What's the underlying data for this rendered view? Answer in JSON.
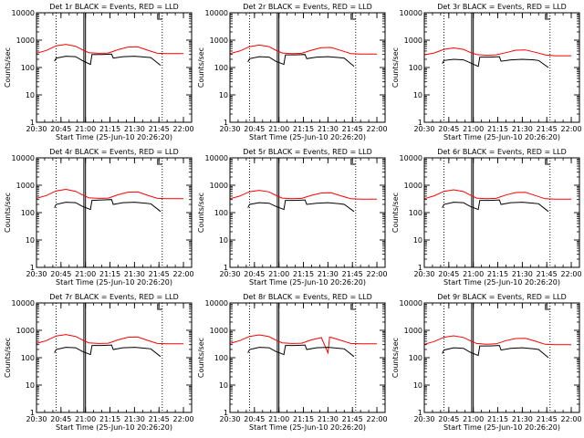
{
  "figure": {
    "background": "#ffffff",
    "axis_color": "#000000",
    "events_color": "#000000",
    "lld_color": "#ff0000"
  },
  "chart_data": [
    {
      "type": "line",
      "title": "Det 1r BLACK = Events, RED = LLD",
      "xlabel": "Start Time (25-Jun-10 20:26:20)",
      "ylabel": "Counts/sec",
      "yscale": "log",
      "ylim": [
        1,
        10000
      ],
      "xlim": [
        "20:30",
        "22:05"
      ],
      "x_ticks": [
        "20:30",
        "20:45",
        "21:00",
        "21:15",
        "21:30",
        "21:45",
        "22:00"
      ],
      "y_ticks": [
        "1",
        "10",
        "100",
        "1000",
        "10000"
      ],
      "dotted_vlines": [
        "20:42",
        "21:47"
      ],
      "solid_vlines": [
        "20:59",
        "21:00"
      ],
      "series": [
        {
          "role": "lld",
          "x": [
            "20:30",
            "20:36",
            "20:42",
            "20:48",
            "20:54",
            "20:58",
            "21:02",
            "21:08",
            "21:14",
            "21:20",
            "21:26",
            "21:32",
            "21:38",
            "21:44",
            "21:50",
            "21:56",
            "22:00"
          ],
          "values": [
            330,
            420,
            620,
            700,
            600,
            450,
            350,
            330,
            340,
            450,
            560,
            570,
            430,
            330,
            320,
            320,
            320
          ]
        },
        {
          "role": "events",
          "x": [
            "20:41",
            "20:42",
            "20:48",
            "20:54",
            "20:58",
            "21:03",
            "21:04",
            "21:10",
            "21:16",
            "21:17",
            "21:23",
            "21:30",
            "21:37",
            "21:40",
            "21:46"
          ],
          "values": [
            170,
            220,
            260,
            250,
            180,
            130,
            300,
            300,
            310,
            220,
            250,
            260,
            240,
            230,
            120
          ]
        }
      ]
    },
    {
      "type": "line",
      "title": "Det 2r BLACK = Events, RED = LLD",
      "xlabel": "Start Time (25-Jun-10 20:26:20)",
      "ylabel": "Counts/sec",
      "yscale": "log",
      "ylim": [
        1,
        10000
      ],
      "xlim": [
        "20:30",
        "22:05"
      ],
      "x_ticks": [
        "20:30",
        "20:45",
        "21:00",
        "21:15",
        "21:30",
        "21:45",
        "22:00"
      ],
      "y_ticks": [
        "1",
        "10",
        "100",
        "1000",
        "10000"
      ],
      "dotted_vlines": [
        "20:42",
        "21:47"
      ],
      "solid_vlines": [
        "20:59",
        "21:00"
      ],
      "series": [
        {
          "role": "lld",
          "x": [
            "20:30",
            "20:36",
            "20:42",
            "20:48",
            "20:54",
            "20:58",
            "21:02",
            "21:08",
            "21:14",
            "21:20",
            "21:26",
            "21:32",
            "21:38",
            "21:44",
            "21:50",
            "21:56",
            "22:00"
          ],
          "values": [
            320,
            400,
            580,
            660,
            580,
            430,
            340,
            320,
            330,
            430,
            530,
            540,
            420,
            320,
            310,
            310,
            310
          ]
        },
        {
          "role": "events",
          "x": [
            "20:41",
            "20:42",
            "20:48",
            "20:54",
            "20:58",
            "21:03",
            "21:04",
            "21:10",
            "21:16",
            "21:17",
            "21:23",
            "21:30",
            "21:37",
            "21:40",
            "21:46"
          ],
          "values": [
            160,
            210,
            250,
            240,
            170,
            130,
            290,
            290,
            300,
            210,
            240,
            250,
            230,
            220,
            110
          ]
        }
      ]
    },
    {
      "type": "line",
      "title": "Det 3r BLACK = Events, RED = LLD",
      "xlabel": "Start Time (25-Jun-10 20:26:20)",
      "ylabel": "Counts/sec",
      "yscale": "log",
      "ylim": [
        1,
        10000
      ],
      "xlim": [
        "20:30",
        "22:05"
      ],
      "x_ticks": [
        "20:30",
        "20:45",
        "21:00",
        "21:15",
        "21:30",
        "21:45",
        "22:00"
      ],
      "y_ticks": [
        "1",
        "10",
        "100",
        "1000",
        "10000"
      ],
      "dotted_vlines": [
        "20:42",
        "21:47"
      ],
      "solid_vlines": [
        "20:59",
        "21:00"
      ],
      "series": [
        {
          "role": "lld",
          "x": [
            "20:30",
            "20:36",
            "20:42",
            "20:48",
            "20:54",
            "20:58",
            "21:02",
            "21:08",
            "21:14",
            "21:20",
            "21:26",
            "21:32",
            "21:38",
            "21:44",
            "21:50",
            "21:56",
            "22:00"
          ],
          "values": [
            290,
            340,
            460,
            520,
            460,
            360,
            300,
            280,
            290,
            350,
            430,
            440,
            360,
            290,
            270,
            270,
            270
          ]
        },
        {
          "role": "events",
          "x": [
            "20:41",
            "20:42",
            "20:48",
            "20:54",
            "20:58",
            "21:03",
            "21:04",
            "21:10",
            "21:16",
            "21:17",
            "21:23",
            "21:30",
            "21:37",
            "21:40",
            "21:46"
          ],
          "values": [
            140,
            180,
            200,
            190,
            150,
            110,
            240,
            240,
            250,
            170,
            190,
            200,
            190,
            180,
            100
          ]
        }
      ]
    },
    {
      "type": "line",
      "title": "Det 4r BLACK = Events, RED = LLD",
      "xlabel": "Start Time (25-Jun-10 20:26:20)",
      "ylabel": "Counts/sec",
      "yscale": "log",
      "ylim": [
        1,
        10000
      ],
      "xlim": [
        "20:30",
        "22:05"
      ],
      "x_ticks": [
        "20:30",
        "20:45",
        "21:00",
        "21:15",
        "21:30",
        "21:45",
        "22:00"
      ],
      "y_ticks": [
        "1",
        "10",
        "100",
        "1000",
        "10000"
      ],
      "dotted_vlines": [
        "20:42",
        "21:47"
      ],
      "solid_vlines": [
        "20:59",
        "21:00"
      ],
      "series": [
        {
          "role": "lld",
          "x": [
            "20:30",
            "20:36",
            "20:42",
            "20:48",
            "20:54",
            "20:58",
            "21:02",
            "21:08",
            "21:14",
            "21:20",
            "21:26",
            "21:32",
            "21:38",
            "21:44",
            "21:50",
            "21:56",
            "22:00"
          ],
          "values": [
            330,
            420,
            620,
            710,
            600,
            450,
            350,
            330,
            340,
            450,
            560,
            570,
            430,
            330,
            320,
            320,
            320
          ]
        },
        {
          "role": "events",
          "x": [
            "20:41",
            "20:42",
            "20:48",
            "20:54",
            "20:58",
            "21:03",
            "21:04",
            "21:10",
            "21:16",
            "21:17",
            "21:23",
            "21:30",
            "21:37",
            "21:40",
            "21:46"
          ],
          "values": [
            150,
            200,
            240,
            230,
            170,
            130,
            280,
            290,
            300,
            200,
            230,
            240,
            220,
            210,
            110
          ]
        }
      ]
    },
    {
      "type": "line",
      "title": "Det 5r BLACK = Events, RED = LLD",
      "xlabel": "Start Time (25-Jun-10 20:26:20)",
      "ylabel": "Counts/sec",
      "yscale": "log",
      "ylim": [
        1,
        10000
      ],
      "xlim": [
        "20:30",
        "22:05"
      ],
      "x_ticks": [
        "20:30",
        "20:45",
        "21:00",
        "21:15",
        "21:30",
        "21:45",
        "22:00"
      ],
      "y_ticks": [
        "1",
        "10",
        "100",
        "1000",
        "10000"
      ],
      "dotted_vlines": [
        "20:42",
        "21:47"
      ],
      "solid_vlines": [
        "20:59",
        "21:00"
      ],
      "series": [
        {
          "role": "lld",
          "x": [
            "20:30",
            "20:36",
            "20:42",
            "20:48",
            "20:54",
            "20:58",
            "21:02",
            "21:08",
            "21:14",
            "21:20",
            "21:26",
            "21:32",
            "21:38",
            "21:44",
            "21:50",
            "21:56",
            "22:00"
          ],
          "values": [
            320,
            400,
            580,
            650,
            570,
            430,
            340,
            320,
            330,
            430,
            520,
            530,
            410,
            320,
            310,
            310,
            310
          ]
        },
        {
          "role": "events",
          "x": [
            "20:41",
            "20:42",
            "20:48",
            "20:54",
            "20:58",
            "21:03",
            "21:04",
            "21:10",
            "21:16",
            "21:17",
            "21:23",
            "21:30",
            "21:37",
            "21:40",
            "21:46"
          ],
          "values": [
            150,
            200,
            230,
            220,
            170,
            130,
            280,
            280,
            290,
            200,
            220,
            230,
            210,
            200,
            110
          ]
        }
      ]
    },
    {
      "type": "line",
      "title": "Det 6r BLACK = Events, RED = LLD",
      "xlabel": "Start Time (25-Jun-10 20:26:20)",
      "ylabel": "Counts/sec",
      "yscale": "log",
      "ylim": [
        1,
        10000
      ],
      "xlim": [
        "20:30",
        "22:05"
      ],
      "x_ticks": [
        "20:30",
        "20:45",
        "21:00",
        "21:15",
        "21:30",
        "21:45",
        "22:00"
      ],
      "y_ticks": [
        "1",
        "10",
        "100",
        "1000",
        "10000"
      ],
      "dotted_vlines": [
        "20:42",
        "21:47"
      ],
      "solid_vlines": [
        "20:59",
        "21:00"
      ],
      "series": [
        {
          "role": "lld",
          "x": [
            "20:30",
            "20:36",
            "20:42",
            "20:48",
            "20:54",
            "20:58",
            "21:02",
            "21:08",
            "21:14",
            "21:20",
            "21:26",
            "21:32",
            "21:38",
            "21:44",
            "21:50",
            "21:56",
            "22:00"
          ],
          "values": [
            320,
            410,
            600,
            680,
            590,
            440,
            340,
            320,
            330,
            440,
            540,
            550,
            420,
            320,
            310,
            310,
            310
          ]
        },
        {
          "role": "events",
          "x": [
            "20:41",
            "20:42",
            "20:48",
            "20:54",
            "20:58",
            "21:03",
            "21:04",
            "21:10",
            "21:16",
            "21:17",
            "21:23",
            "21:30",
            "21:37",
            "21:40",
            "21:46"
          ],
          "values": [
            150,
            200,
            240,
            230,
            170,
            130,
            280,
            280,
            290,
            200,
            230,
            240,
            220,
            210,
            110
          ]
        }
      ]
    },
    {
      "type": "line",
      "title": "Det 7r BLACK = Events, RED = LLD",
      "xlabel": "Start Time (25-Jun-10 20:26:20)",
      "ylabel": "Counts/sec",
      "yscale": "log",
      "ylim": [
        1,
        10000
      ],
      "xlim": [
        "20:30",
        "22:05"
      ],
      "x_ticks": [
        "20:30",
        "20:45",
        "21:00",
        "21:15",
        "21:30",
        "21:45",
        "22:00"
      ],
      "y_ticks": [
        "1",
        "10",
        "100",
        "1000",
        "10000"
      ],
      "dotted_vlines": [
        "20:42",
        "21:47"
      ],
      "solid_vlines": [
        "20:59",
        "21:00"
      ],
      "series": [
        {
          "role": "lld",
          "x": [
            "20:30",
            "20:36",
            "20:42",
            "20:48",
            "20:54",
            "20:58",
            "21:02",
            "21:08",
            "21:14",
            "21:20",
            "21:26",
            "21:32",
            "21:38",
            "21:44",
            "21:50",
            "21:56",
            "22:00"
          ],
          "values": [
            330,
            420,
            620,
            700,
            600,
            450,
            350,
            330,
            340,
            450,
            560,
            570,
            430,
            330,
            320,
            320,
            320
          ]
        },
        {
          "role": "events",
          "x": [
            "20:41",
            "20:42",
            "20:48",
            "20:54",
            "20:58",
            "21:03",
            "21:04",
            "21:10",
            "21:16",
            "21:17",
            "21:23",
            "21:30",
            "21:37",
            "21:40",
            "21:46"
          ],
          "values": [
            150,
            200,
            240,
            230,
            170,
            130,
            280,
            280,
            290,
            200,
            230,
            240,
            220,
            210,
            110
          ]
        }
      ]
    },
    {
      "type": "line",
      "title": "Det 8r BLACK = Events, RED = LLD",
      "xlabel": "Start Time (25-Jun-10 20:26:20)",
      "ylabel": "Counts/sec",
      "yscale": "log",
      "ylim": [
        1,
        10000
      ],
      "xlim": [
        "20:30",
        "22:05"
      ],
      "x_ticks": [
        "20:30",
        "20:45",
        "21:00",
        "21:15",
        "21:30",
        "21:45",
        "22:00"
      ],
      "y_ticks": [
        "1",
        "10",
        "100",
        "1000",
        "10000"
      ],
      "dotted_vlines": [
        "20:42",
        "21:47"
      ],
      "solid_vlines": [
        "20:59",
        "21:00"
      ],
      "series": [
        {
          "role": "lld",
          "x": [
            "20:30",
            "20:36",
            "20:42",
            "20:48",
            "20:54",
            "20:58",
            "21:02",
            "21:08",
            "21:14",
            "21:20",
            "21:26",
            "21:30",
            "21:31",
            "21:32",
            "21:38",
            "21:44",
            "21:50",
            "21:56",
            "22:00"
          ],
          "values": [
            330,
            420,
            600,
            680,
            590,
            440,
            350,
            330,
            340,
            450,
            540,
            150,
            560,
            550,
            430,
            330,
            320,
            320,
            320
          ]
        },
        {
          "role": "events",
          "x": [
            "20:41",
            "20:42",
            "20:48",
            "20:54",
            "20:58",
            "21:03",
            "21:04",
            "21:10",
            "21:16",
            "21:17",
            "21:23",
            "21:30",
            "21:37",
            "21:40",
            "21:46"
          ],
          "values": [
            150,
            200,
            240,
            230,
            170,
            130,
            280,
            280,
            290,
            200,
            230,
            240,
            220,
            210,
            110
          ]
        }
      ]
    },
    {
      "type": "line",
      "title": "Det 9r BLACK = Events, RED = LLD",
      "xlabel": "Start Time (25-Jun-10 20:26:20)",
      "ylabel": "Counts/sec",
      "yscale": "log",
      "ylim": [
        1,
        10000
      ],
      "xlim": [
        "20:30",
        "22:05"
      ],
      "x_ticks": [
        "20:30",
        "20:45",
        "21:00",
        "21:15",
        "21:30",
        "21:45",
        "22:00"
      ],
      "y_ticks": [
        "1",
        "10",
        "100",
        "1000",
        "10000"
      ],
      "dotted_vlines": [
        "20:42",
        "21:47"
      ],
      "solid_vlines": [
        "20:59",
        "21:00"
      ],
      "series": [
        {
          "role": "lld",
          "x": [
            "20:30",
            "20:36",
            "20:42",
            "20:48",
            "20:54",
            "20:58",
            "21:02",
            "21:08",
            "21:14",
            "21:20",
            "21:26",
            "21:32",
            "21:38",
            "21:44",
            "21:50",
            "21:56",
            "22:00"
          ],
          "values": [
            310,
            390,
            560,
            630,
            550,
            420,
            330,
            310,
            320,
            420,
            500,
            510,
            400,
            310,
            300,
            300,
            300
          ]
        },
        {
          "role": "events",
          "x": [
            "20:41",
            "20:42",
            "20:48",
            "20:54",
            "20:58",
            "21:03",
            "21:04",
            "21:10",
            "21:16",
            "21:17",
            "21:23",
            "21:30",
            "21:37",
            "21:40",
            "21:46"
          ],
          "values": [
            140,
            190,
            230,
            220,
            160,
            120,
            270,
            270,
            280,
            190,
            220,
            230,
            210,
            200,
            100
          ]
        }
      ]
    }
  ]
}
